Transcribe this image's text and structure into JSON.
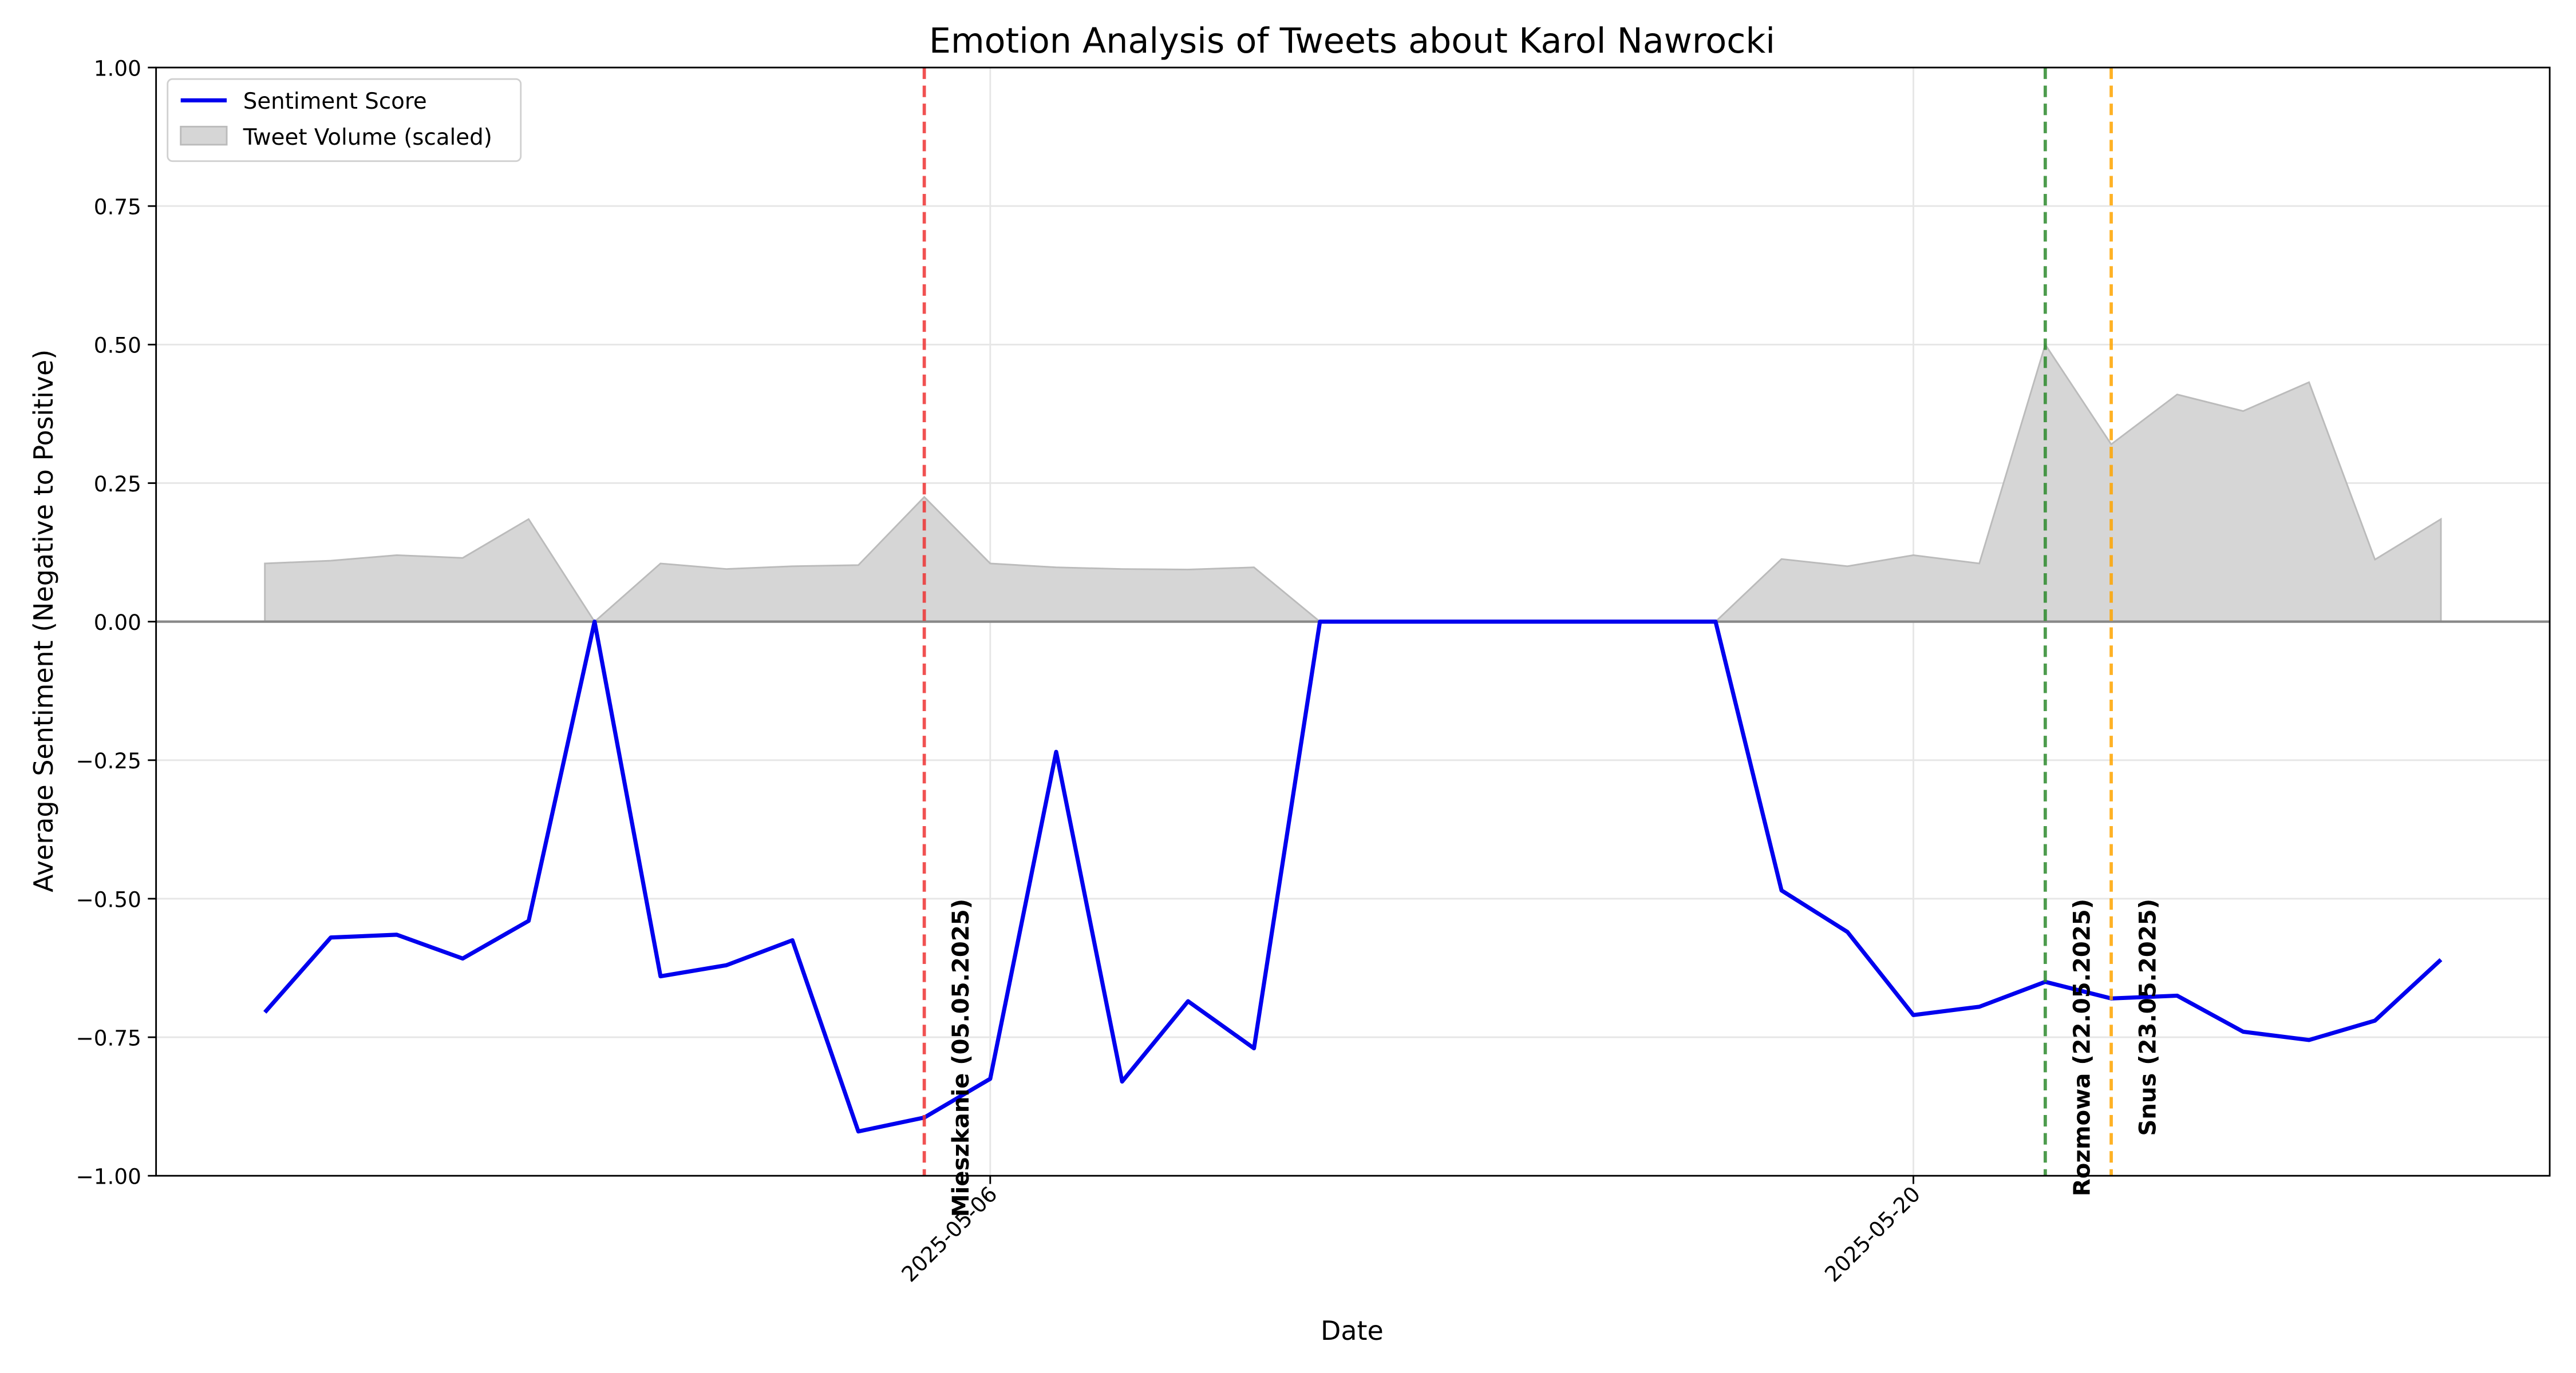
{
  "chart_data": {
    "type": "line",
    "title": "Emotion Analysis of Tweets about Karol Nawrocki",
    "xlabel": "Date",
    "ylabel": "Average Sentiment (Negative to Positive)",
    "x": [
      "2025-04-25",
      "2025-04-26",
      "2025-04-27",
      "2025-04-28",
      "2025-04-29",
      "2025-04-30",
      "2025-05-01",
      "2025-05-02",
      "2025-05-03",
      "2025-05-04",
      "2025-05-05",
      "2025-05-06",
      "2025-05-07",
      "2025-05-08",
      "2025-05-09",
      "2025-05-10",
      "2025-05-11",
      "2025-05-12",
      "2025-05-13",
      "2025-05-14",
      "2025-05-15",
      "2025-05-16",
      "2025-05-17",
      "2025-05-18",
      "2025-05-19",
      "2025-05-20",
      "2025-05-21",
      "2025-05-22",
      "2025-05-23",
      "2025-05-24",
      "2025-05-25",
      "2025-05-26",
      "2025-05-27",
      "2025-05-28"
    ],
    "series": [
      {
        "name": "Sentiment Score",
        "color": "#0000ee",
        "kind": "line",
        "values": [
          -0.705,
          -0.57,
          -0.565,
          -0.608,
          -0.54,
          0.0,
          -0.64,
          -0.62,
          -0.575,
          -0.92,
          -0.895,
          -0.825,
          -0.235,
          -0.83,
          -0.685,
          -0.77,
          0.0,
          0.0,
          0.0,
          0.0,
          0.0,
          0.0,
          0.0,
          -0.485,
          -0.56,
          -0.71,
          -0.695,
          -0.65,
          -0.68,
          -0.675,
          -0.74,
          -0.755,
          -0.72,
          -0.61
        ]
      },
      {
        "name": "Tweet Volume (scaled)",
        "color": "#d6d6d6",
        "kind": "area",
        "values": [
          0.105,
          0.11,
          0.12,
          0.115,
          0.185,
          0.0,
          0.105,
          0.095,
          0.1,
          0.102,
          0.225,
          0.105,
          0.098,
          0.095,
          0.094,
          0.098,
          0.0,
          0.0,
          0.0,
          0.0,
          0.0,
          0.0,
          0.0,
          0.113,
          0.1,
          0.12,
          0.105,
          0.5,
          0.32,
          0.41,
          0.38,
          0.432,
          0.112,
          0.185
        ]
      }
    ],
    "events": [
      {
        "date": "2025-05-05",
        "label": "Mieszkanie (05.05.2025)",
        "color": "#ee3333"
      },
      {
        "date": "2025-05-22",
        "label": "Rozmowa (22.05.2025)",
        "color": "#2e8b2e"
      },
      {
        "date": "2025-05-23",
        "label": "Snus (23.05.2025)",
        "color": "#ffa500"
      }
    ],
    "event_label_y": -0.5,
    "hline": 0,
    "xlim": [
      "2025-04-23T08:24:00Z",
      "2025-05-29T15:36:00Z"
    ],
    "xticks": [
      "2025-05-06",
      "2025-05-20"
    ],
    "ylim": [
      -1,
      1
    ],
    "yticks": [
      {
        "value": -1,
        "label": "−1.00"
      },
      {
        "value": -0.75,
        "label": "−0.75"
      },
      {
        "value": -0.5,
        "label": "−0.50"
      },
      {
        "value": -0.25,
        "label": "−0.25"
      },
      {
        "value": 0,
        "label": "0.00"
      },
      {
        "value": 0.25,
        "label": "0.25"
      },
      {
        "value": 0.5,
        "label": "0.50"
      },
      {
        "value": 0.75,
        "label": "0.75"
      },
      {
        "value": 1,
        "label": "1.00"
      }
    ],
    "grid": true,
    "legend": "upper left"
  }
}
